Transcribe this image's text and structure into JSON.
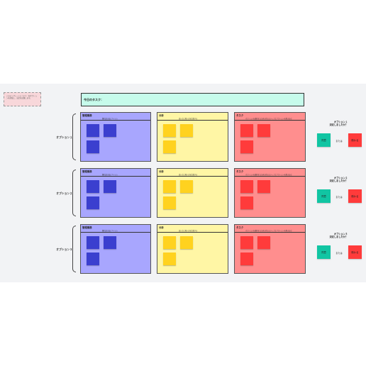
{
  "note": "このテンプレートについて：各オプションを評価し、決定を記録します。",
  "title": "今日のタスク：",
  "columns": {
    "purple": {
      "title": "管理業務",
      "subtitle": "優先度の高いアイテム"
    },
    "yellow": {
      "title": "分析",
      "subtitle": "良い点と悪い点を比較する"
    },
    "red": {
      "title": "タスク",
      "subtitle": "オプションを選択するための次のステップとアクションを書き込む"
    }
  },
  "rows": [
    {
      "label": "オプション１",
      "option_title": "オプション１",
      "decided": "決定しましたか？",
      "approve": "同意",
      "or": "または",
      "reject": "断わる"
    },
    {
      "label": "オプション２",
      "option_title": "オプション２",
      "decided": "決定しましたか？",
      "approve": "同意",
      "or": "または",
      "reject": "断わる"
    },
    {
      "label": "オプション３",
      "option_title": "オプション３",
      "decided": "決定しましたか？",
      "approve": "同意",
      "or": "または",
      "reject": "断わる"
    }
  ],
  "colors": {
    "purple_panel": "#a8a6fe",
    "purple_sticky": "#3b3fcf",
    "yellow_panel": "#fff6a5",
    "yellow_sticky": "#ffd21f",
    "red_panel": "#ff8e8e",
    "red_sticky": "#ff3b3b",
    "title_bar": "#c6fbeb",
    "approve": "#11c5a3",
    "reject": "#ff3b3b"
  }
}
